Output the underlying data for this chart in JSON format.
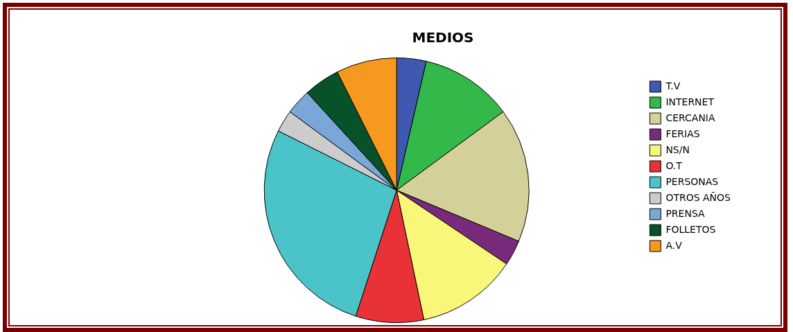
{
  "chart_data": {
    "type": "pie",
    "title": "MEDIOS",
    "categories": [
      "T.V",
      "INTERNET",
      "CERCANIA",
      "FERIAS",
      "NS/N",
      "O.T",
      "PERSONAS",
      "OTROS AÑOS",
      "PRENSA",
      "FOLLETOS",
      "A.V"
    ],
    "values": [
      3.6,
      11.3,
      16.4,
      3.1,
      12.3,
      8.3,
      27.4,
      2.7,
      3.1,
      4.4,
      7.4
    ],
    "colors": [
      "#3f59b0",
      "#33b84a",
      "#d4d09a",
      "#7a2a7a",
      "#f8f77a",
      "#e83238",
      "#4bc4c9",
      "#cccccc",
      "#7aa7d8",
      "#08522a",
      "#f7991f"
    ],
    "legend": "right"
  }
}
